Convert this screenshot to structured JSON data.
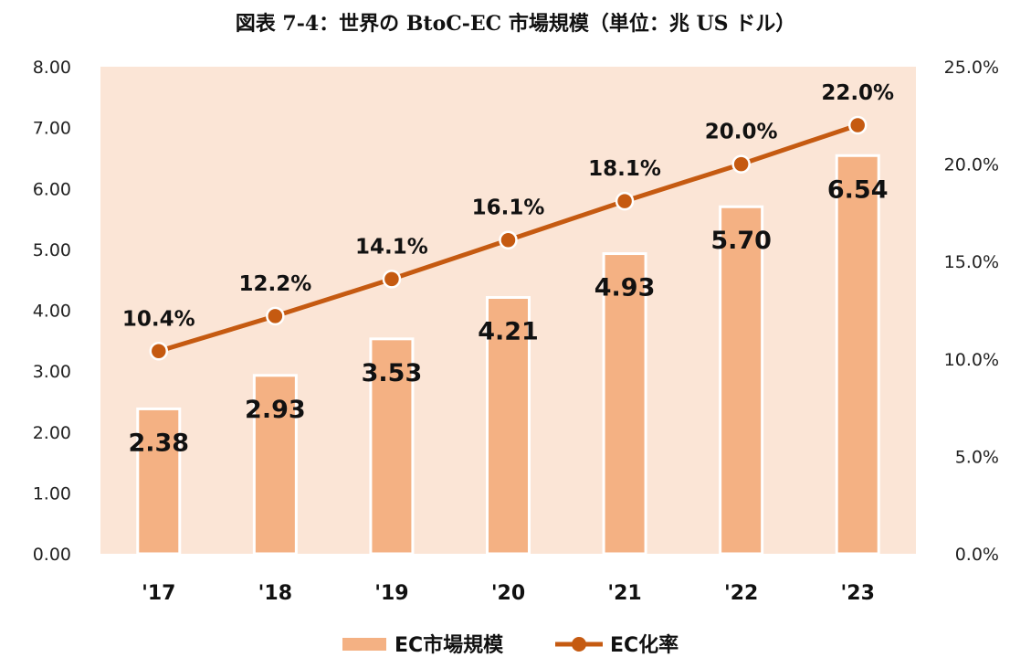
{
  "chart_data": {
    "type": "bar",
    "title": "図表 7-4：世界の BtoC-EC 市場規模（単位：兆 US ドル）",
    "categories": [
      "'17",
      "'18",
      "'19",
      "'20",
      "'21",
      "'22",
      "'23"
    ],
    "series": [
      {
        "name": "EC市場規模",
        "type": "bar",
        "axis": "left",
        "values": [
          2.38,
          2.93,
          3.53,
          4.21,
          4.93,
          5.7,
          6.54
        ],
        "value_labels": [
          "2.38",
          "2.93",
          "3.53",
          "4.21",
          "4.93",
          "5.70",
          "6.54"
        ],
        "color": "#f4b183"
      },
      {
        "name": "EC化率",
        "type": "line",
        "axis": "right",
        "values": [
          10.4,
          12.2,
          14.1,
          16.1,
          18.1,
          20.0,
          22.0
        ],
        "value_labels": [
          "10.4%",
          "12.2%",
          "14.1%",
          "16.1%",
          "18.1%",
          "20.0%",
          "22.0%"
        ],
        "color": "#c55a11"
      }
    ],
    "y_left": {
      "range": [
        0,
        8
      ],
      "ticks": [
        0,
        1,
        2,
        3,
        4,
        5,
        6,
        7,
        8
      ],
      "tick_labels": [
        "0.00",
        "1.00",
        "2.00",
        "3.00",
        "4.00",
        "5.00",
        "6.00",
        "7.00",
        "8.00"
      ]
    },
    "y_right": {
      "range": [
        0,
        25
      ],
      "ticks": [
        0,
        5,
        10,
        15,
        20,
        25
      ],
      "tick_labels": [
        "0.0%",
        "5.0%",
        "10.0%",
        "15.0%",
        "20.0%",
        "25.0%"
      ]
    },
    "grid": false,
    "legend_position": "bottom",
    "colors": {
      "plot_background": "#fbe5d6",
      "bar": "#f4b183",
      "line": "#c55a11"
    }
  }
}
